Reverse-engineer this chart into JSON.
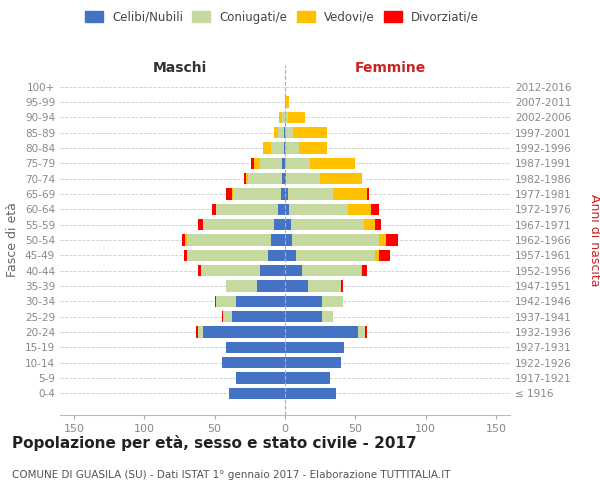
{
  "age_groups": [
    "100+",
    "95-99",
    "90-94",
    "85-89",
    "80-84",
    "75-79",
    "70-74",
    "65-69",
    "60-64",
    "55-59",
    "50-54",
    "45-49",
    "40-44",
    "35-39",
    "30-34",
    "25-29",
    "20-24",
    "15-19",
    "10-14",
    "5-9",
    "0-4"
  ],
  "birth_years": [
    "≤ 1916",
    "1917-1921",
    "1922-1926",
    "1927-1931",
    "1932-1936",
    "1937-1941",
    "1942-1946",
    "1947-1951",
    "1952-1956",
    "1957-1961",
    "1962-1966",
    "1967-1971",
    "1972-1976",
    "1977-1981",
    "1982-1986",
    "1987-1991",
    "1992-1996",
    "1997-2001",
    "2002-2006",
    "2007-2011",
    "2012-2016"
  ],
  "male": {
    "celibi": [
      0,
      0,
      0,
      1,
      1,
      2,
      2,
      3,
      5,
      8,
      10,
      12,
      18,
      20,
      35,
      38,
      58,
      42,
      45,
      35,
      40
    ],
    "coniugati": [
      0,
      0,
      2,
      4,
      9,
      16,
      24,
      34,
      44,
      50,
      60,
      58,
      42,
      22,
      14,
      6,
      4,
      0,
      0,
      0,
      0
    ],
    "vedovi": [
      0,
      0,
      2,
      3,
      6,
      4,
      2,
      1,
      0,
      0,
      1,
      0,
      0,
      0,
      0,
      0,
      0,
      0,
      0,
      0,
      0
    ],
    "divorziati": [
      0,
      0,
      0,
      0,
      0,
      2,
      1,
      4,
      3,
      4,
      2,
      2,
      2,
      0,
      1,
      1,
      1,
      0,
      0,
      0,
      0
    ]
  },
  "female": {
    "nubili": [
      0,
      0,
      0,
      0,
      0,
      0,
      1,
      2,
      3,
      4,
      5,
      8,
      12,
      16,
      26,
      26,
      52,
      42,
      40,
      32,
      36
    ],
    "coniugate": [
      0,
      0,
      2,
      6,
      10,
      18,
      24,
      32,
      42,
      52,
      62,
      56,
      42,
      24,
      15,
      8,
      5,
      0,
      0,
      0,
      0
    ],
    "vedove": [
      0,
      3,
      12,
      24,
      20,
      32,
      30,
      24,
      16,
      8,
      5,
      3,
      1,
      0,
      0,
      0,
      0,
      0,
      0,
      0,
      0
    ],
    "divorziate": [
      0,
      0,
      0,
      0,
      0,
      0,
      0,
      2,
      6,
      4,
      8,
      8,
      3,
      1,
      0,
      0,
      1,
      0,
      0,
      0,
      0
    ]
  },
  "colors": {
    "celibi": "#4472c4",
    "coniugati": "#c5d9a0",
    "vedovi": "#ffc000",
    "divorziati": "#ff0000"
  },
  "xlim": 160,
  "title": "Popolazione per età, sesso e stato civile - 2017",
  "subtitle": "COMUNE DI GUASILA (SU) - Dati ISTAT 1° gennaio 2017 - Elaborazione TUTTITALIA.IT",
  "ylabel_left": "Fasce di età",
  "ylabel_right": "Anni di nascita",
  "xlabel_left": "Maschi",
  "xlabel_right": "Femmine",
  "bg_color": "#ffffff",
  "grid_color": "#cccccc",
  "tick_color": "#888888"
}
